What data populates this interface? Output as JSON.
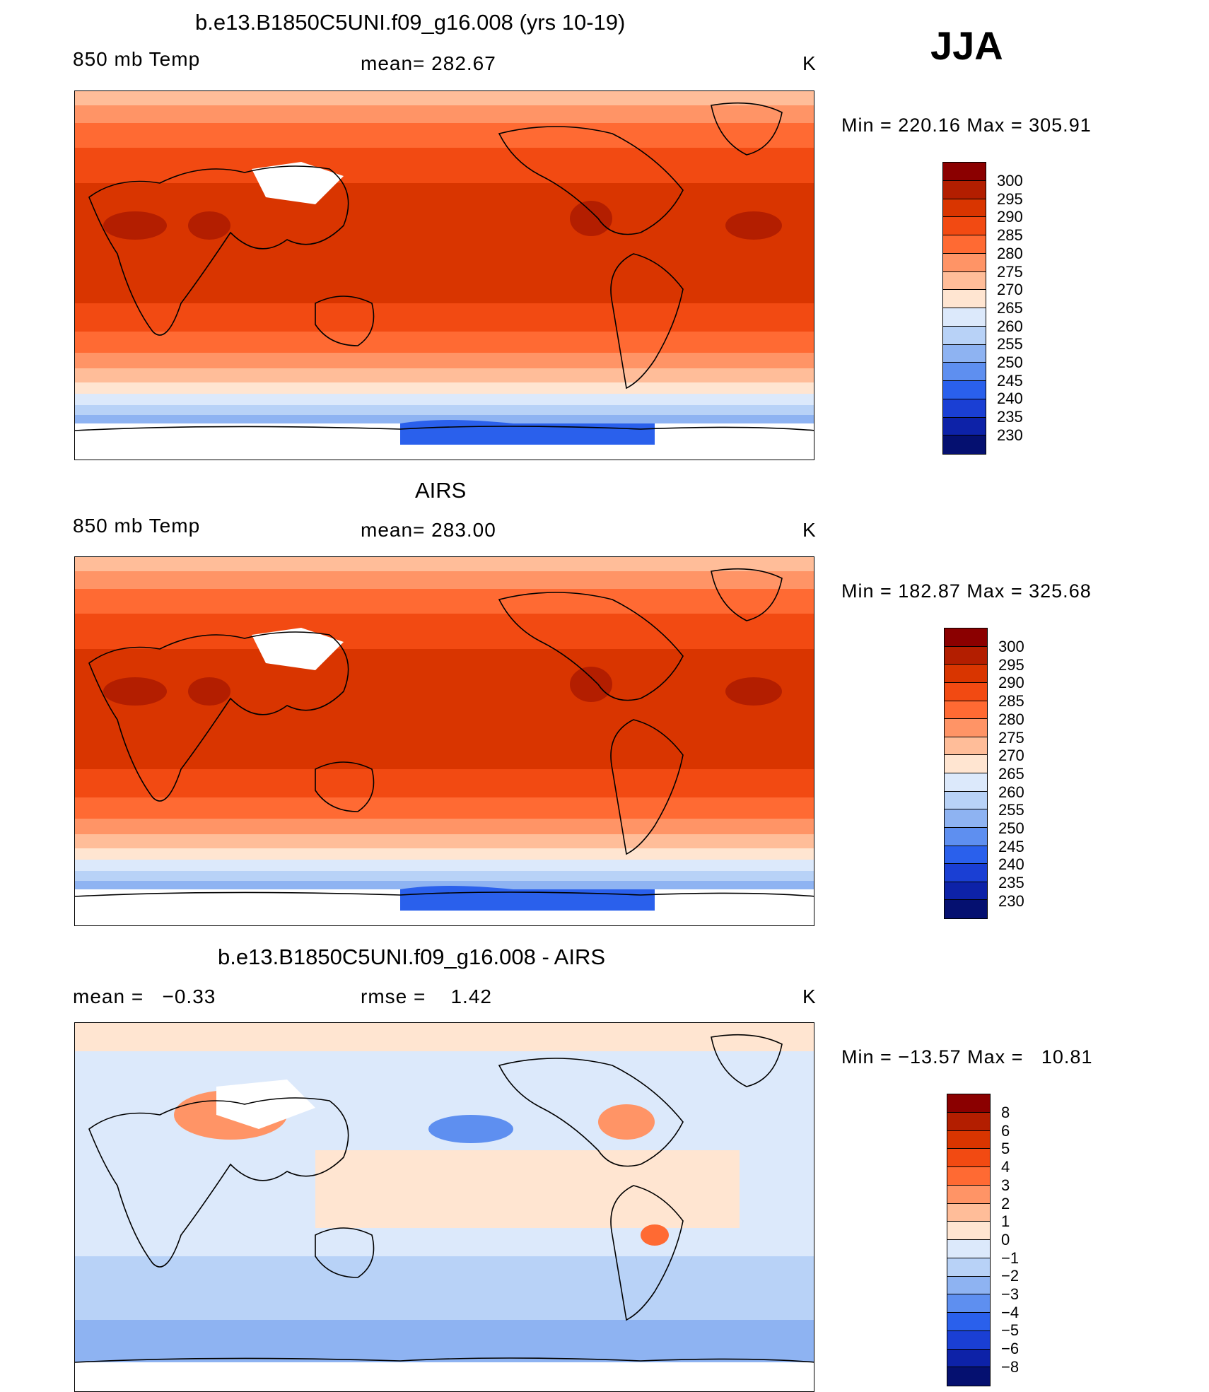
{
  "season": "JJA",
  "panels": [
    {
      "title": "b.e13.B1850C5UNI.f09_g16.008 (yrs 10-19)",
      "left_label": "850 mb Temp",
      "center_label": "mean= 282.67",
      "units": "K",
      "minmax": "Min = 220.16 Max = 305.91",
      "levels": [
        "300",
        "295",
        "290",
        "285",
        "280",
        "275",
        "270",
        "265",
        "260",
        "255",
        "250",
        "245",
        "240",
        "235",
        "230"
      ],
      "colors": [
        "#8b0000",
        "#b31e00",
        "#d93500",
        "#f24a12",
        "#ff6a33",
        "#ff9466",
        "#ffbd99",
        "#ffe5d1",
        "#dce9fb",
        "#b8d2f7",
        "#8eb3f2",
        "#5e8ff0",
        "#2a60ec",
        "#1a3fd4",
        "#0d22a8",
        "#051070"
      ],
      "pattern": "abs"
    },
    {
      "title": "AIRS",
      "left_label": "850 mb Temp",
      "center_label": "mean= 283.00",
      "units": "K",
      "minmax": "Min = 182.87 Max = 325.68",
      "levels": [
        "300",
        "295",
        "290",
        "285",
        "280",
        "275",
        "270",
        "265",
        "260",
        "255",
        "250",
        "245",
        "240",
        "235",
        "230"
      ],
      "colors": [
        "#8b0000",
        "#b31e00",
        "#d93500",
        "#f24a12",
        "#ff6a33",
        "#ff9466",
        "#ffbd99",
        "#ffe5d1",
        "#dce9fb",
        "#b8d2f7",
        "#8eb3f2",
        "#5e8ff0",
        "#2a60ec",
        "#1a3fd4",
        "#0d22a8",
        "#051070"
      ],
      "pattern": "abs"
    },
    {
      "title": "b.e13.B1850C5UNI.f09_g16.008 - AIRS",
      "left_label": "mean =   −0.33",
      "center_label": "rmse =    1.42",
      "units": "K",
      "minmax": "Min = −13.57 Max =   10.81",
      "levels": [
        "8",
        "6",
        "5",
        "4",
        "3",
        "2",
        "1",
        "0",
        "−1",
        "−2",
        "−3",
        "−4",
        "−5",
        "−6",
        "−8"
      ],
      "colors": [
        "#8b0000",
        "#b31e00",
        "#d93500",
        "#f24a12",
        "#ff6a33",
        "#ff9466",
        "#ffbd99",
        "#ffe5d1",
        "#dce9fb",
        "#b8d2f7",
        "#8eb3f2",
        "#5e8ff0",
        "#2a60ec",
        "#1a3fd4",
        "#0d22a8",
        "#051070"
      ],
      "pattern": "diff"
    }
  ]
}
